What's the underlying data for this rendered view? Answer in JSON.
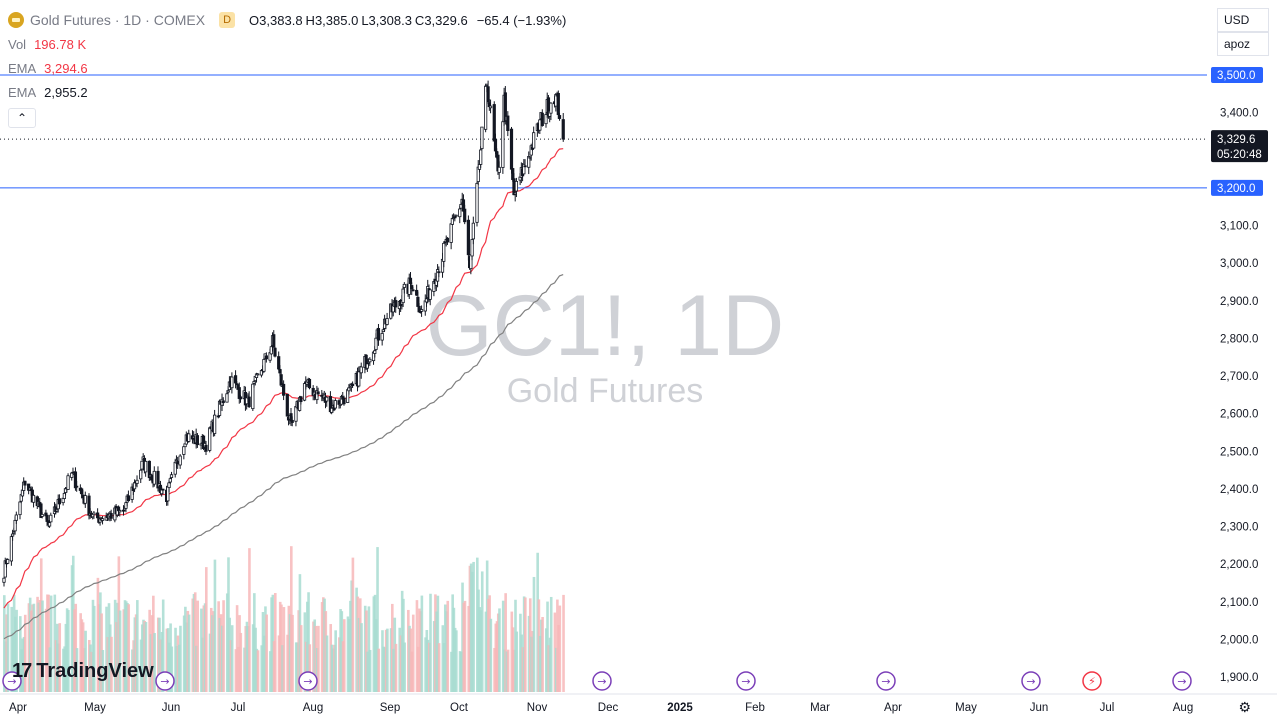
{
  "header": {
    "title": "Gold Futures · 1D · COMEX",
    "interval_badge": "D",
    "ohlc": {
      "o_label": "O",
      "o": "3,383.8",
      "h_label": "H",
      "h": "3,385.0",
      "l_label": "L",
      "l": "3,308.3",
      "c_label": "C",
      "c": "3,329.6",
      "change": "−65.4 (−1.93%)"
    },
    "indicators": [
      {
        "name": "Vol",
        "value": "196.78 K"
      },
      {
        "name": "EMA",
        "value": "3,294.6"
      },
      {
        "name": "EMA",
        "value": "2,955.2"
      }
    ],
    "collapse_icon": "chevron-up-icon"
  },
  "currency": "USD",
  "scale_mode": "apoz",
  "watermark": {
    "main": "GC1!, 1D",
    "sub": "Gold Futures"
  },
  "logo_text": "TradingView",
  "colors": {
    "up": "#089981",
    "down": "#f23645",
    "candle": "#131722",
    "ema_fast": "#f23645",
    "ema_slow": "#808080",
    "hline": "#2962ff",
    "vol_up": "#a8dcd1",
    "vol_down": "#f7b7b8"
  },
  "chart_data": {
    "type": "candlestick",
    "title": "Gold Futures · 1D · COMEX",
    "y_axis": {
      "ticks": [
        1900,
        2000,
        2100,
        2200,
        2300,
        2400,
        2500,
        2600,
        2700,
        2800,
        2900,
        3000,
        3100,
        3200,
        3300,
        3400,
        3500
      ],
      "tick_labels": [
        "1,900.0",
        "2,000.0",
        "2,100.0",
        "2,200.0",
        "2,300.0",
        "2,400.0",
        "2,500.0",
        "2,600.0",
        "2,700.0",
        "2,800.0",
        "2,900.0",
        "3,000.0",
        "3,100.0",
        "3,200.0",
        "3,300.0",
        "3,400.0",
        "3,500.0"
      ],
      "range": [
        1860,
        3660
      ]
    },
    "x_axis": {
      "labels": [
        "Apr",
        "May",
        "Jun",
        "Jul",
        "Aug",
        "Sep",
        "Oct",
        "Nov",
        "Dec",
        "2025",
        "Feb",
        "Mar",
        "Apr",
        "May",
        "Jun",
        "Jul",
        "Aug"
      ],
      "bold": [
        "2025"
      ]
    },
    "horizontal_lines": [
      {
        "value": 3500,
        "label": "3,500.0"
      },
      {
        "value": 3200,
        "label": "3,200.0"
      }
    ],
    "last_price": {
      "value": 3329.6,
      "label": "3,329.6",
      "countdown": "05:20:48"
    },
    "ema_fast_last": 3294.6,
    "ema_slow_last": 2955.2,
    "anchors": [
      {
        "date": "2024-03-26",
        "close": 2180
      },
      {
        "date": "2024-04-12",
        "close": 2420
      },
      {
        "date": "2024-05-01",
        "close": 2300
      },
      {
        "date": "2024-05-20",
        "close": 2440
      },
      {
        "date": "2024-06-07",
        "close": 2320
      },
      {
        "date": "2024-07-01",
        "close": 2340
      },
      {
        "date": "2024-07-17",
        "close": 2470
      },
      {
        "date": "2024-08-05",
        "close": 2380
      },
      {
        "date": "2024-08-20",
        "close": 2540
      },
      {
        "date": "2024-09-06",
        "close": 2520
      },
      {
        "date": "2024-09-26",
        "close": 2690
      },
      {
        "date": "2024-10-10",
        "close": 2630
      },
      {
        "date": "2024-10-30",
        "close": 2790
      },
      {
        "date": "2024-11-14",
        "close": 2560
      },
      {
        "date": "2024-11-25",
        "close": 2680
      },
      {
        "date": "2024-12-18",
        "close": 2620
      },
      {
        "date": "2025-01-02",
        "close": 2660
      },
      {
        "date": "2025-01-30",
        "close": 2850
      },
      {
        "date": "2025-02-20",
        "close": 2950
      },
      {
        "date": "2025-02-28",
        "close": 2870
      },
      {
        "date": "2025-03-20",
        "close": 3050
      },
      {
        "date": "2025-04-02",
        "close": 3170
      },
      {
        "date": "2025-04-08",
        "close": 2980
      },
      {
        "date": "2025-04-22",
        "close": 3480
      },
      {
        "date": "2025-05-01",
        "close": 3230
      },
      {
        "date": "2025-05-06",
        "close": 3430
      },
      {
        "date": "2025-05-14",
        "close": 3180
      },
      {
        "date": "2025-06-05",
        "close": 3380
      },
      {
        "date": "2025-06-16",
        "close": 3450
      },
      {
        "date": "2025-06-20",
        "close": 3400
      },
      {
        "date": "2025-06-23",
        "close": 3329.6
      }
    ]
  }
}
